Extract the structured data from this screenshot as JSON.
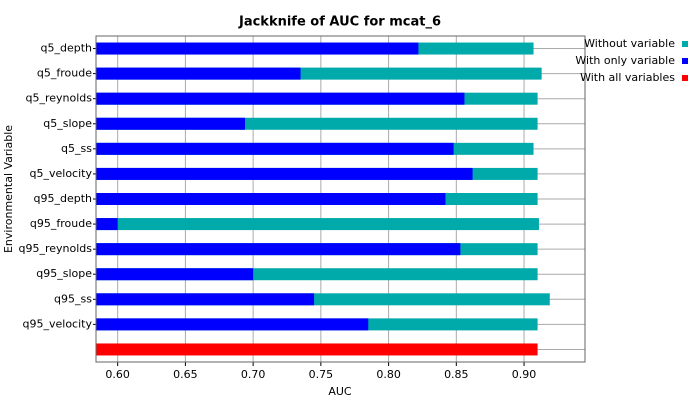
{
  "chart_data": {
    "type": "hbar-overlap",
    "title": "Jackknife of AUC for mcat_6",
    "xlabel": "AUC",
    "ylabel": "Environmental Variable",
    "categories": [
      "q5_depth",
      "q5_froude",
      "q5_reynolds",
      "q5_slope",
      "q5_ss",
      "q5_velocity",
      "q95_depth",
      "q95_froude",
      "q95_reynolds",
      "q95_slope",
      "q95_ss",
      "q95_velocity",
      null
    ],
    "series": [
      {
        "name": "Without variable",
        "color": "#00aaaa",
        "values": [
          0.907,
          0.913,
          0.91,
          0.91,
          0.907,
          0.91,
          0.91,
          0.911,
          0.91,
          0.91,
          0.919,
          0.91,
          null
        ]
      },
      {
        "name": "With only variable",
        "color": "#0000ff",
        "values": [
          0.822,
          0.735,
          0.856,
          0.694,
          0.848,
          0.862,
          0.842,
          0.6,
          0.853,
          0.7,
          0.745,
          0.785,
          null
        ]
      },
      {
        "name": "With all variables",
        "color": "#ff0000",
        "values": [
          null,
          null,
          null,
          null,
          null,
          null,
          null,
          null,
          null,
          null,
          null,
          null,
          0.91
        ]
      }
    ],
    "xlim": [
      0.584,
      0.945
    ],
    "xticks": [
      {
        "value": 0.6,
        "label": "0.60"
      },
      0.65,
      {
        "value": 0.7,
        "label": "0.70"
      },
      0.75,
      {
        "value": 0.8,
        "label": "0.80"
      },
      0.85,
      {
        "value": 0.9,
        "label": "0.90"
      }
    ],
    "grid": true,
    "legend": "right"
  }
}
